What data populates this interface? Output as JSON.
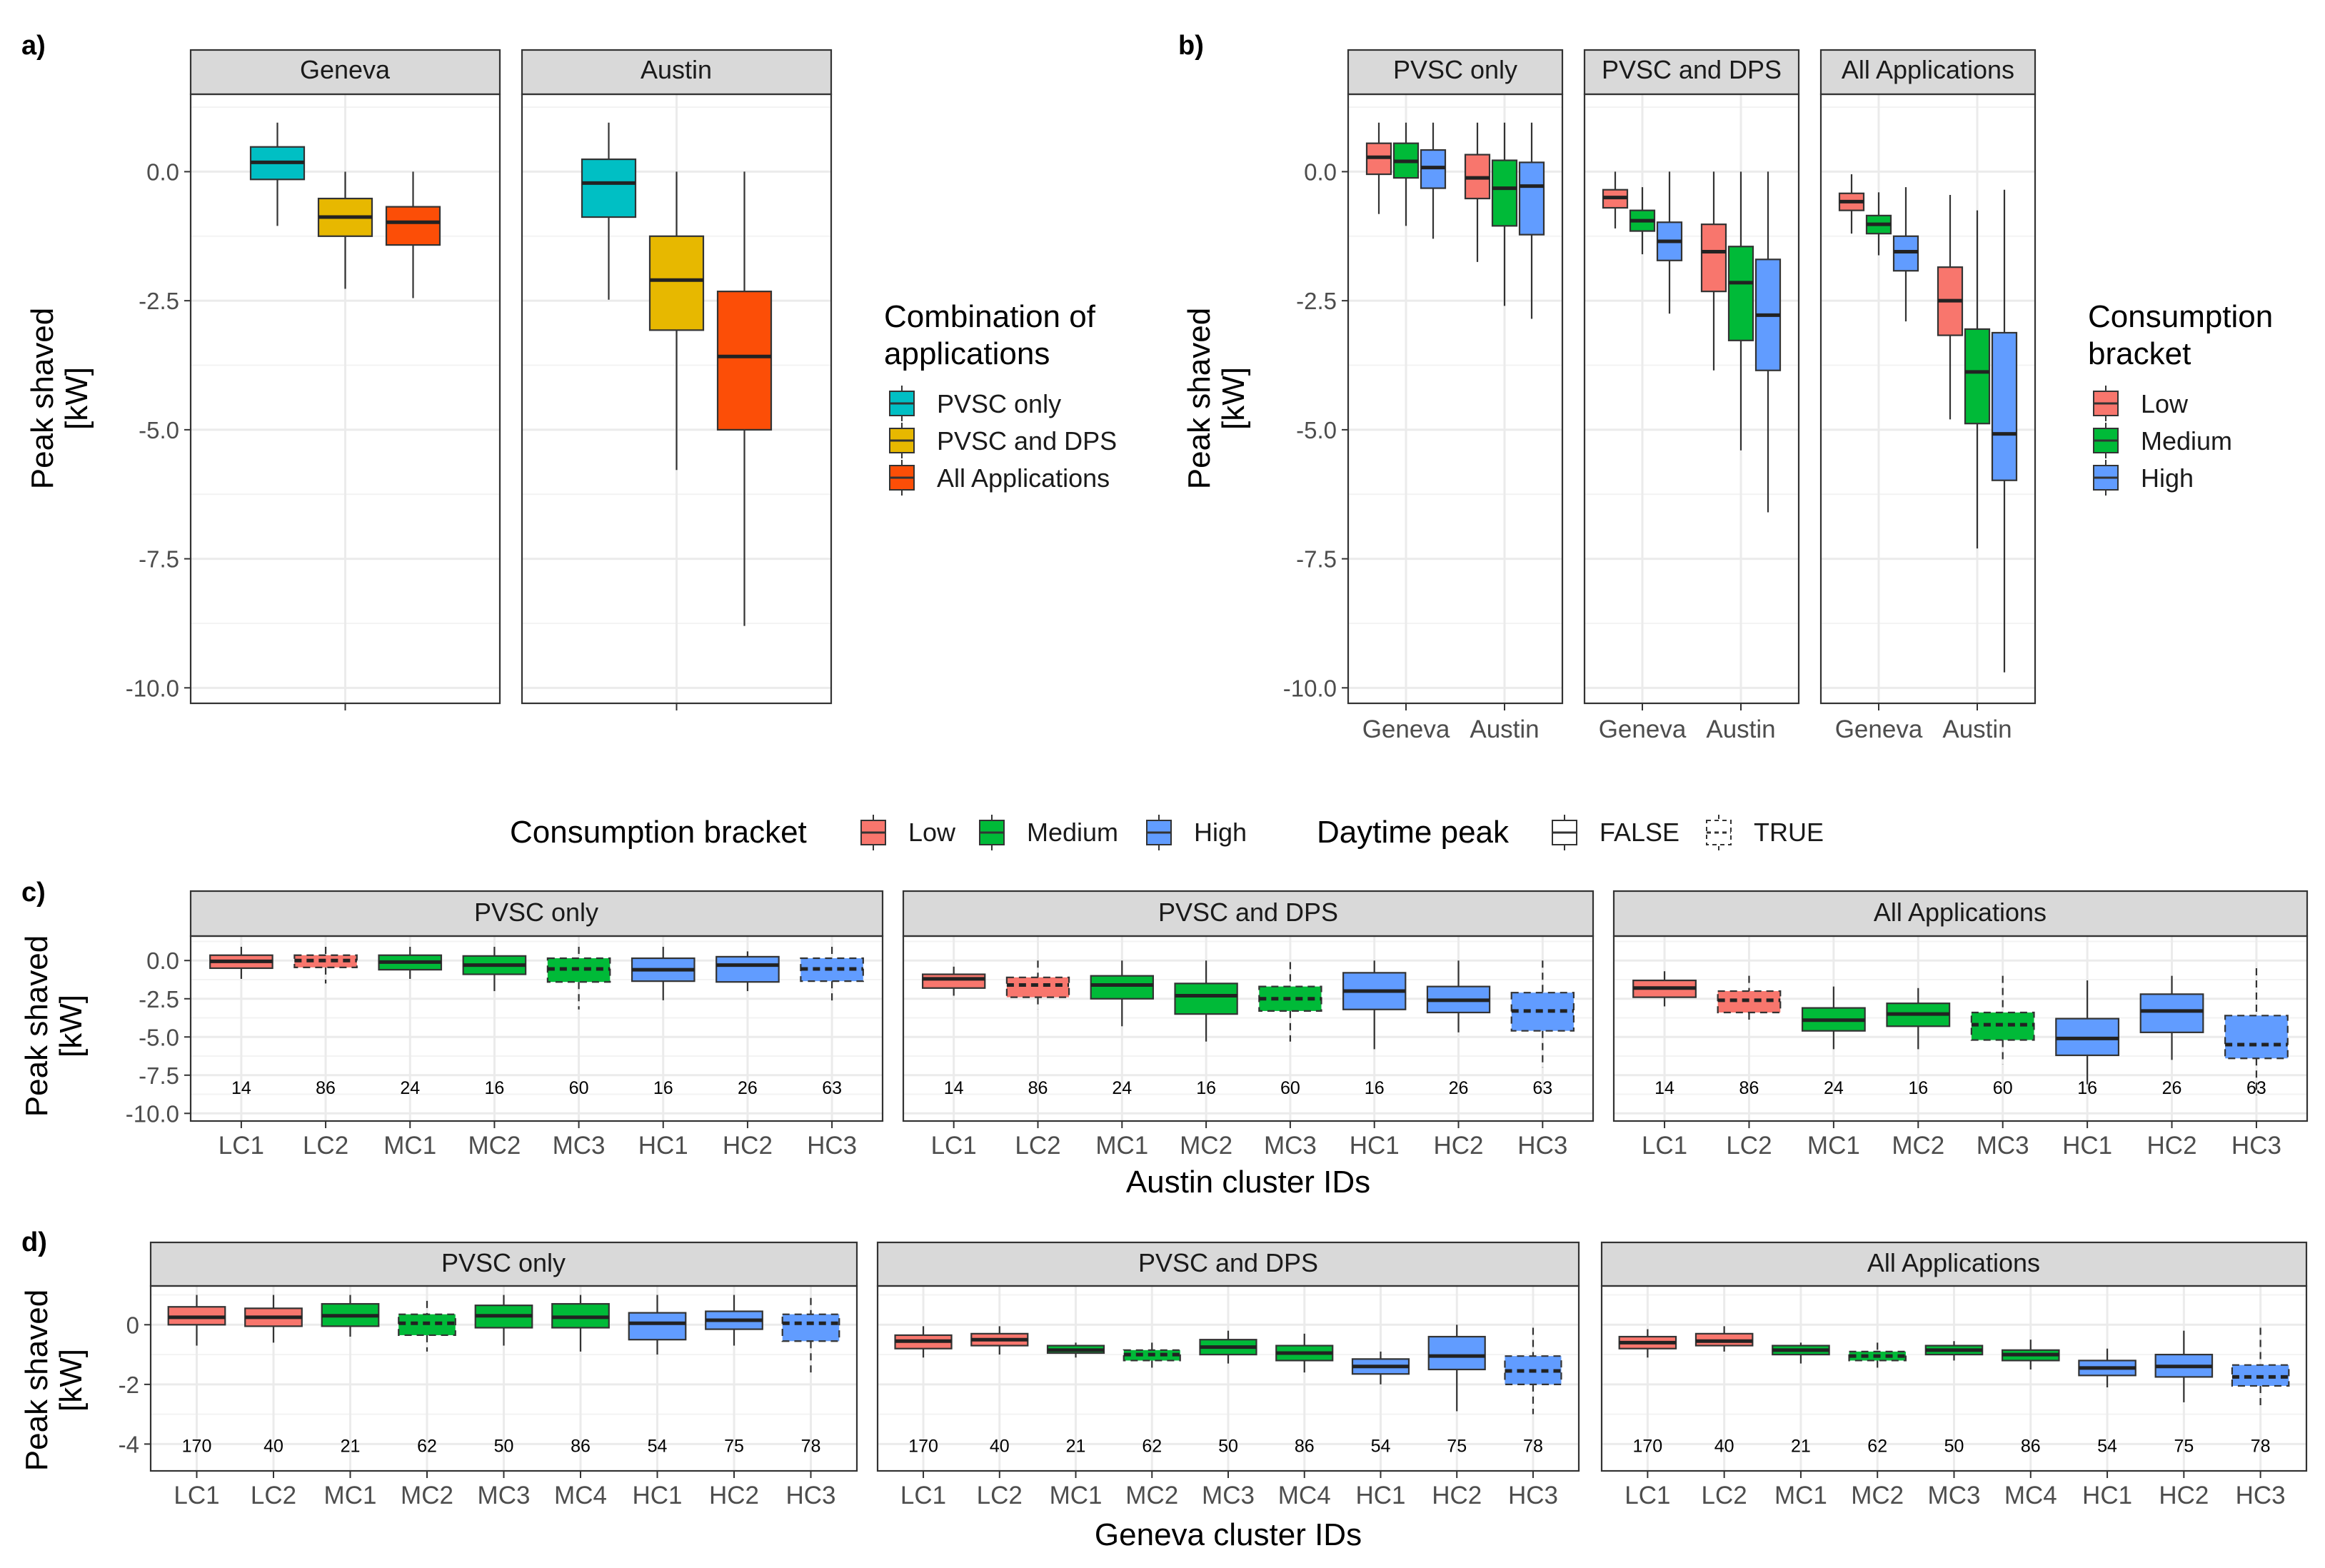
{
  "colors": {
    "PVSC only": "#00BFC4",
    "PVSC and DPS": "#E7B800",
    "All Applications": "#FC4E07",
    "Low": "#F8766D",
    "Medium": "#00BA38",
    "High": "#619CFF",
    "strip": "#D9D9D9",
    "grid": "#EBEBEB",
    "axis_text": "#4D4D4D"
  },
  "legends": {
    "a": {
      "title_line1": "Combination of",
      "title_line2": "applications",
      "items": [
        "PVSC only",
        "PVSC and DPS",
        "All Applications"
      ]
    },
    "b": {
      "title_line1": "Consumption",
      "title_line2": "bracket",
      "items": [
        "Low",
        "Medium",
        "High"
      ]
    },
    "shared": {
      "title": "Consumption bracket",
      "items": [
        "Low",
        "Medium",
        "High"
      ],
      "peak_title": "Daytime peak",
      "peak_items": [
        "FALSE",
        "TRUE"
      ]
    }
  },
  "chart_data": [
    {
      "panel": "a)",
      "type": "box",
      "ylabel_line1": "Peak shaved",
      "ylabel_line2": "[kW]",
      "ylim": [
        -10.3,
        1.5
      ],
      "yticks": [
        0,
        -2.5,
        -5,
        -7.5,
        -10
      ],
      "ytick_labels": [
        "0.0",
        "-2.5",
        "-5.0",
        "-7.5",
        "-10.0"
      ],
      "facets": [
        {
          "title": "Geneva",
          "boxes": [
            {
              "group": "PVSC only",
              "q1": -0.15,
              "median": 0.18,
              "q3": 0.48,
              "lower": -1.05,
              "upper": 0.95
            },
            {
              "group": "PVSC and DPS",
              "q1": -1.25,
              "median": -0.88,
              "q3": -0.52,
              "lower": -2.27,
              "upper": 0.0
            },
            {
              "group": "All Applications",
              "q1": -1.42,
              "median": -0.98,
              "q3": -0.68,
              "lower": -2.45,
              "upper": 0.0
            }
          ]
        },
        {
          "title": "Austin",
          "boxes": [
            {
              "group": "PVSC only",
              "q1": -0.88,
              "median": -0.22,
              "q3": 0.24,
              "lower": -2.48,
              "upper": 0.95
            },
            {
              "group": "PVSC and DPS",
              "q1": -3.07,
              "median": -2.1,
              "q3": -1.25,
              "lower": -5.78,
              "upper": 0.0
            },
            {
              "group": "All Applications",
              "q1": -5.0,
              "median": -3.58,
              "q3": -2.32,
              "lower": -8.8,
              "upper": 0.0
            }
          ]
        }
      ]
    },
    {
      "panel": "b)",
      "type": "box",
      "ylabel_line1": "Peak shaved",
      "ylabel_line2": "[kW]",
      "ylim": [
        -10.3,
        1.5
      ],
      "yticks": [
        0,
        -2.5,
        -5,
        -7.5,
        -10
      ],
      "ytick_labels": [
        "0.0",
        "-2.5",
        "-5.0",
        "-7.5",
        "-10.0"
      ],
      "categories": [
        "Geneva",
        "Austin"
      ],
      "facets": [
        {
          "title": "PVSC only",
          "boxes": [
            {
              "x": "Geneva",
              "bracket": "Low",
              "q1": -0.05,
              "median": 0.28,
              "q3": 0.55,
              "lower": -0.82,
              "upper": 0.95
            },
            {
              "x": "Geneva",
              "bracket": "Medium",
              "q1": -0.12,
              "median": 0.2,
              "q3": 0.55,
              "lower": -1.05,
              "upper": 0.95
            },
            {
              "x": "Geneva",
              "bracket": "High",
              "q1": -0.32,
              "median": 0.08,
              "q3": 0.42,
              "lower": -1.3,
              "upper": 0.95
            },
            {
              "x": "Austin",
              "bracket": "Low",
              "q1": -0.52,
              "median": -0.12,
              "q3": 0.33,
              "lower": -1.75,
              "upper": 0.95
            },
            {
              "x": "Austin",
              "bracket": "Medium",
              "q1": -1.05,
              "median": -0.32,
              "q3": 0.22,
              "lower": -2.6,
              "upper": 0.95
            },
            {
              "x": "Austin",
              "bracket": "High",
              "q1": -1.22,
              "median": -0.28,
              "q3": 0.18,
              "lower": -2.85,
              "upper": 0.95
            }
          ]
        },
        {
          "title": "PVSC and DPS",
          "boxes": [
            {
              "x": "Geneva",
              "bracket": "Low",
              "q1": -0.7,
              "median": -0.5,
              "q3": -0.35,
              "lower": -1.1,
              "upper": 0.0
            },
            {
              "x": "Geneva",
              "bracket": "Medium",
              "q1": -1.15,
              "median": -0.95,
              "q3": -0.75,
              "lower": -1.6,
              "upper": -0.3
            },
            {
              "x": "Geneva",
              "bracket": "High",
              "q1": -1.72,
              "median": -1.35,
              "q3": -0.98,
              "lower": -2.75,
              "upper": 0.0
            },
            {
              "x": "Austin",
              "bracket": "Low",
              "q1": -2.32,
              "median": -1.55,
              "q3": -1.02,
              "lower": -3.85,
              "upper": 0.0
            },
            {
              "x": "Austin",
              "bracket": "Medium",
              "q1": -3.27,
              "median": -2.15,
              "q3": -1.45,
              "lower": -5.4,
              "upper": 0.0
            },
            {
              "x": "Austin",
              "bracket": "High",
              "q1": -3.85,
              "median": -2.78,
              "q3": -1.7,
              "lower": -6.6,
              "upper": 0.0
            }
          ]
        },
        {
          "title": "All Applications",
          "boxes": [
            {
              "x": "Geneva",
              "bracket": "Low",
              "q1": -0.75,
              "median": -0.58,
              "q3": -0.42,
              "lower": -1.2,
              "upper": -0.05
            },
            {
              "x": "Geneva",
              "bracket": "Medium",
              "q1": -1.2,
              "median": -1.02,
              "q3": -0.85,
              "lower": -1.62,
              "upper": -0.4
            },
            {
              "x": "Geneva",
              "bracket": "High",
              "q1": -1.92,
              "median": -1.55,
              "q3": -1.25,
              "lower": -2.9,
              "upper": -0.3
            },
            {
              "x": "Austin",
              "bracket": "Low",
              "q1": -3.17,
              "median": -2.5,
              "q3": -1.85,
              "lower": -4.8,
              "upper": -0.45
            },
            {
              "x": "Austin",
              "bracket": "Medium",
              "q1": -4.88,
              "median": -3.88,
              "q3": -3.05,
              "lower": -7.3,
              "upper": -0.75
            },
            {
              "x": "Austin",
              "bracket": "High",
              "q1": -5.98,
              "median": -5.08,
              "q3": -3.12,
              "lower": -9.7,
              "upper": -0.35
            }
          ]
        }
      ]
    },
    {
      "panel": "c)",
      "type": "box",
      "ylabel_line1": "Peak shaved",
      "ylabel_line2": "[kW]",
      "xlabel": "Austin cluster IDs",
      "ylim": [
        -10.5,
        1.6
      ],
      "yticks": [
        0,
        -2.5,
        -5,
        -7.5,
        -10
      ],
      "ytick_labels": [
        "0.0",
        "-2.5",
        "-5.0",
        "-7.5",
        "-10.0"
      ],
      "count_y": -8.3,
      "categories": [
        "LC1",
        "LC2",
        "MC1",
        "MC2",
        "MC3",
        "HC1",
        "HC2",
        "HC3"
      ],
      "brackets": [
        "Low",
        "Low",
        "Medium",
        "Medium",
        "Medium",
        "High",
        "High",
        "High"
      ],
      "daytime_peak": [
        false,
        true,
        false,
        false,
        true,
        false,
        false,
        true
      ],
      "counts": [
        "14",
        "86",
        "24",
        "16",
        "60",
        "16",
        "26",
        "63"
      ],
      "facets": [
        {
          "title": "PVSC only",
          "boxes": [
            {
              "q1": -0.5,
              "median": -0.05,
              "q3": 0.35,
              "lower": -1.2,
              "upper": 0.9
            },
            {
              "q1": -0.45,
              "median": 0.0,
              "q3": 0.35,
              "lower": -1.5,
              "upper": 0.9
            },
            {
              "q1": -0.6,
              "median": -0.1,
              "q3": 0.35,
              "lower": -1.2,
              "upper": 0.9
            },
            {
              "q1": -0.9,
              "median": -0.3,
              "q3": 0.3,
              "lower": -2.0,
              "upper": 0.9
            },
            {
              "q1": -1.4,
              "median": -0.55,
              "q3": 0.15,
              "lower": -3.2,
              "upper": 0.9
            },
            {
              "q1": -1.35,
              "median": -0.6,
              "q3": 0.15,
              "lower": -2.6,
              "upper": 0.9
            },
            {
              "q1": -1.4,
              "median": -0.3,
              "q3": 0.25,
              "lower": -2.0,
              "upper": 0.6
            },
            {
              "q1": -1.35,
              "median": -0.55,
              "q3": 0.15,
              "lower": -2.8,
              "upper": 0.9
            }
          ]
        },
        {
          "title": "PVSC and DPS",
          "boxes": [
            {
              "q1": -1.8,
              "median": -1.2,
              "q3": -0.9,
              "lower": -2.3,
              "upper": -0.4
            },
            {
              "q1": -2.4,
              "median": -1.6,
              "q3": -1.1,
              "lower": -3.2,
              "upper": 0.0
            },
            {
              "q1": -2.5,
              "median": -1.6,
              "q3": -1.0,
              "lower": -4.3,
              "upper": 0.0
            },
            {
              "q1": -3.5,
              "median": -2.3,
              "q3": -1.5,
              "lower": -5.3,
              "upper": 0.0
            },
            {
              "q1": -3.3,
              "median": -2.5,
              "q3": -1.7,
              "lower": -5.3,
              "upper": -0.1
            },
            {
              "q1": -3.2,
              "median": -2.0,
              "q3": -0.8,
              "lower": -5.8,
              "upper": 0.0
            },
            {
              "q1": -3.4,
              "median": -2.6,
              "q3": -1.7,
              "lower": -4.7,
              "upper": 0.0
            },
            {
              "q1": -4.6,
              "median": -3.3,
              "q3": -2.1,
              "lower": -7.0,
              "upper": 0.0
            }
          ]
        },
        {
          "title": "All Applications",
          "boxes": [
            {
              "q1": -2.4,
              "median": -1.8,
              "q3": -1.3,
              "lower": -3.0,
              "upper": -0.7
            },
            {
              "q1": -3.4,
              "median": -2.6,
              "q3": -2.0,
              "lower": -4.1,
              "upper": -1.0
            },
            {
              "q1": -4.6,
              "median": -3.9,
              "q3": -3.1,
              "lower": -5.8,
              "upper": -1.7
            },
            {
              "q1": -4.3,
              "median": -3.5,
              "q3": -2.8,
              "lower": -5.8,
              "upper": -1.8
            },
            {
              "q1": -5.2,
              "median": -4.2,
              "q3": -3.4,
              "lower": -6.8,
              "upper": -1.0
            },
            {
              "q1": -6.2,
              "median": -5.1,
              "q3": -3.8,
              "lower": -8.1,
              "upper": -1.3
            },
            {
              "q1": -4.7,
              "median": -3.3,
              "q3": -2.2,
              "lower": -6.5,
              "upper": -1.0
            },
            {
              "q1": -6.4,
              "median": -5.5,
              "q3": -3.6,
              "lower": -8.8,
              "upper": -0.5
            }
          ]
        }
      ]
    },
    {
      "panel": "d)",
      "type": "box",
      "ylabel_line1": "Peak shaved",
      "ylabel_line2": "[kW]",
      "xlabel": "Geneva cluster IDs",
      "ylim": [
        -4.9,
        1.3
      ],
      "yticks": [
        0,
        -2,
        -4
      ],
      "ytick_labels": [
        "0",
        "-2",
        "-4"
      ],
      "count_y": -4.05,
      "categories": [
        "LC1",
        "LC2",
        "MC1",
        "MC2",
        "MC3",
        "MC4",
        "HC1",
        "HC2",
        "HC3"
      ],
      "brackets": [
        "Low",
        "Low",
        "Medium",
        "Medium",
        "Medium",
        "Medium",
        "High",
        "High",
        "High"
      ],
      "daytime_peak": [
        false,
        false,
        false,
        true,
        false,
        false,
        false,
        false,
        true
      ],
      "counts": [
        "170",
        "40",
        "21",
        "62",
        "50",
        "86",
        "54",
        "75",
        "78"
      ],
      "facets": [
        {
          "title": "PVSC only",
          "boxes": [
            {
              "q1": 0.0,
              "median": 0.25,
              "q3": 0.6,
              "lower": -0.7,
              "upper": 1.0
            },
            {
              "q1": -0.05,
              "median": 0.25,
              "q3": 0.55,
              "lower": -0.6,
              "upper": 1.0
            },
            {
              "q1": -0.05,
              "median": 0.3,
              "q3": 0.7,
              "lower": -0.4,
              "upper": 1.0
            },
            {
              "q1": -0.35,
              "median": 0.05,
              "q3": 0.35,
              "lower": -0.9,
              "upper": 0.8
            },
            {
              "q1": -0.1,
              "median": 0.3,
              "q3": 0.65,
              "lower": -0.7,
              "upper": 1.0
            },
            {
              "q1": -0.1,
              "median": 0.25,
              "q3": 0.7,
              "lower": -0.9,
              "upper": 1.0
            },
            {
              "q1": -0.5,
              "median": 0.05,
              "q3": 0.4,
              "lower": -1.0,
              "upper": 1.0
            },
            {
              "q1": -0.15,
              "median": 0.15,
              "q3": 0.45,
              "lower": -0.7,
              "upper": 1.0
            },
            {
              "q1": -0.55,
              "median": 0.05,
              "q3": 0.35,
              "lower": -1.6,
              "upper": 0.9
            }
          ]
        },
        {
          "title": "PVSC and DPS",
          "boxes": [
            {
              "q1": -0.8,
              "median": -0.55,
              "q3": -0.35,
              "lower": -1.1,
              "upper": -0.05
            },
            {
              "q1": -0.7,
              "median": -0.5,
              "q3": -0.3,
              "lower": -1.0,
              "upper": -0.05
            },
            {
              "q1": -0.95,
              "median": -0.85,
              "q3": -0.7,
              "lower": -1.1,
              "upper": -0.6
            },
            {
              "q1": -1.2,
              "median": -1.0,
              "q3": -0.85,
              "lower": -1.5,
              "upper": -0.6
            },
            {
              "q1": -1.0,
              "median": -0.75,
              "q3": -0.5,
              "lower": -1.3,
              "upper": -0.2
            },
            {
              "q1": -1.2,
              "median": -0.95,
              "q3": -0.7,
              "lower": -1.6,
              "upper": -0.3
            },
            {
              "q1": -1.65,
              "median": -1.4,
              "q3": -1.15,
              "lower": -2.0,
              "upper": -0.9
            },
            {
              "q1": -1.5,
              "median": -1.05,
              "q3": -0.4,
              "lower": -2.9,
              "upper": 0.0
            },
            {
              "q1": -2.0,
              "median": -1.55,
              "q3": -1.05,
              "lower": -3.0,
              "upper": -0.1
            }
          ]
        },
        {
          "title": "All Applications",
          "boxes": [
            {
              "q1": -0.8,
              "median": -0.6,
              "q3": -0.4,
              "lower": -1.1,
              "upper": -0.15
            },
            {
              "q1": -0.7,
              "median": -0.55,
              "q3": -0.3,
              "lower": -0.9,
              "upper": -0.05
            },
            {
              "q1": -1.0,
              "median": -0.85,
              "q3": -0.7,
              "lower": -1.3,
              "upper": -0.6
            },
            {
              "q1": -1.2,
              "median": -1.05,
              "q3": -0.9,
              "lower": -1.6,
              "upper": -0.6
            },
            {
              "q1": -1.0,
              "median": -0.85,
              "q3": -0.7,
              "lower": -1.2,
              "upper": -0.55
            },
            {
              "q1": -1.2,
              "median": -1.0,
              "q3": -0.85,
              "lower": -1.5,
              "upper": -0.5
            },
            {
              "q1": -1.7,
              "median": -1.45,
              "q3": -1.2,
              "lower": -2.1,
              "upper": -0.8
            },
            {
              "q1": -1.75,
              "median": -1.4,
              "q3": -1.0,
              "lower": -2.6,
              "upper": -0.2
            },
            {
              "q1": -2.05,
              "median": -1.75,
              "q3": -1.35,
              "lower": -2.7,
              "upper": -0.1
            }
          ]
        }
      ]
    }
  ]
}
